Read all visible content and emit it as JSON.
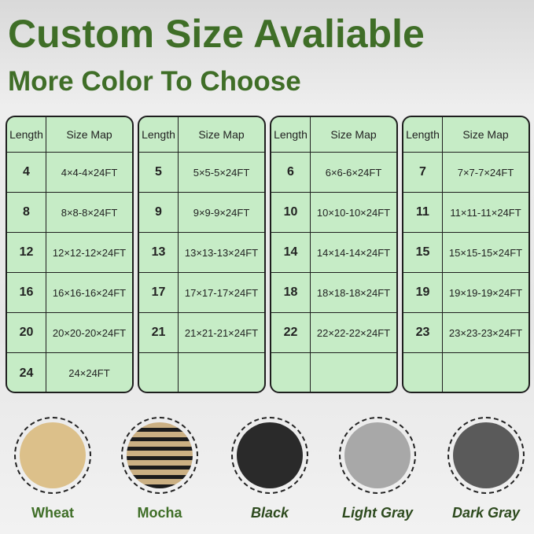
{
  "title": "Custom Size Avaliable",
  "subtitle": "More Color To Choose",
  "table_headers": {
    "length": "Length",
    "size_map": "Size Map"
  },
  "tables": [
    [
      [
        "4",
        "4×4-4×24FT"
      ],
      [
        "8",
        "8×8-8×24FT"
      ],
      [
        "12",
        "12×12-12×24FT"
      ],
      [
        "16",
        "16×16-16×24FT"
      ],
      [
        "20",
        "20×20-20×24FT"
      ],
      [
        "24",
        "24×24FT"
      ]
    ],
    [
      [
        "5",
        "5×5-5×24FT"
      ],
      [
        "9",
        "9×9-9×24FT"
      ],
      [
        "13",
        "13×13-13×24FT"
      ],
      [
        "17",
        "17×17-17×24FT"
      ],
      [
        "21",
        "21×21-21×24FT"
      ],
      [
        "",
        ""
      ]
    ],
    [
      [
        "6",
        "6×6-6×24FT"
      ],
      [
        "10",
        "10×10-10×24FT"
      ],
      [
        "14",
        "14×14-14×24FT"
      ],
      [
        "18",
        "18×18-18×24FT"
      ],
      [
        "22",
        "22×22-22×24FT"
      ],
      [
        "",
        ""
      ]
    ],
    [
      [
        "7",
        "7×7-7×24FT"
      ],
      [
        "11",
        "11×11-11×24FT"
      ],
      [
        "15",
        "15×15-15×24FT"
      ],
      [
        "19",
        "19×19-19×24FT"
      ],
      [
        "23",
        "23×23-23×24FT"
      ],
      [
        "",
        ""
      ]
    ]
  ],
  "colors": [
    {
      "name": "Wheat",
      "swatch": "#dcc08a",
      "italic": false
    },
    {
      "name": "Mocha",
      "swatch": "#8a7450",
      "italic": false
    },
    {
      "name": "Black",
      "swatch": "#2a2a2a",
      "italic": true
    },
    {
      "name": "Light Gray",
      "swatch": "#a8a8a8",
      "italic": true
    },
    {
      "name": "Dark Gray",
      "swatch": "#5a5a5a",
      "italic": true
    }
  ]
}
